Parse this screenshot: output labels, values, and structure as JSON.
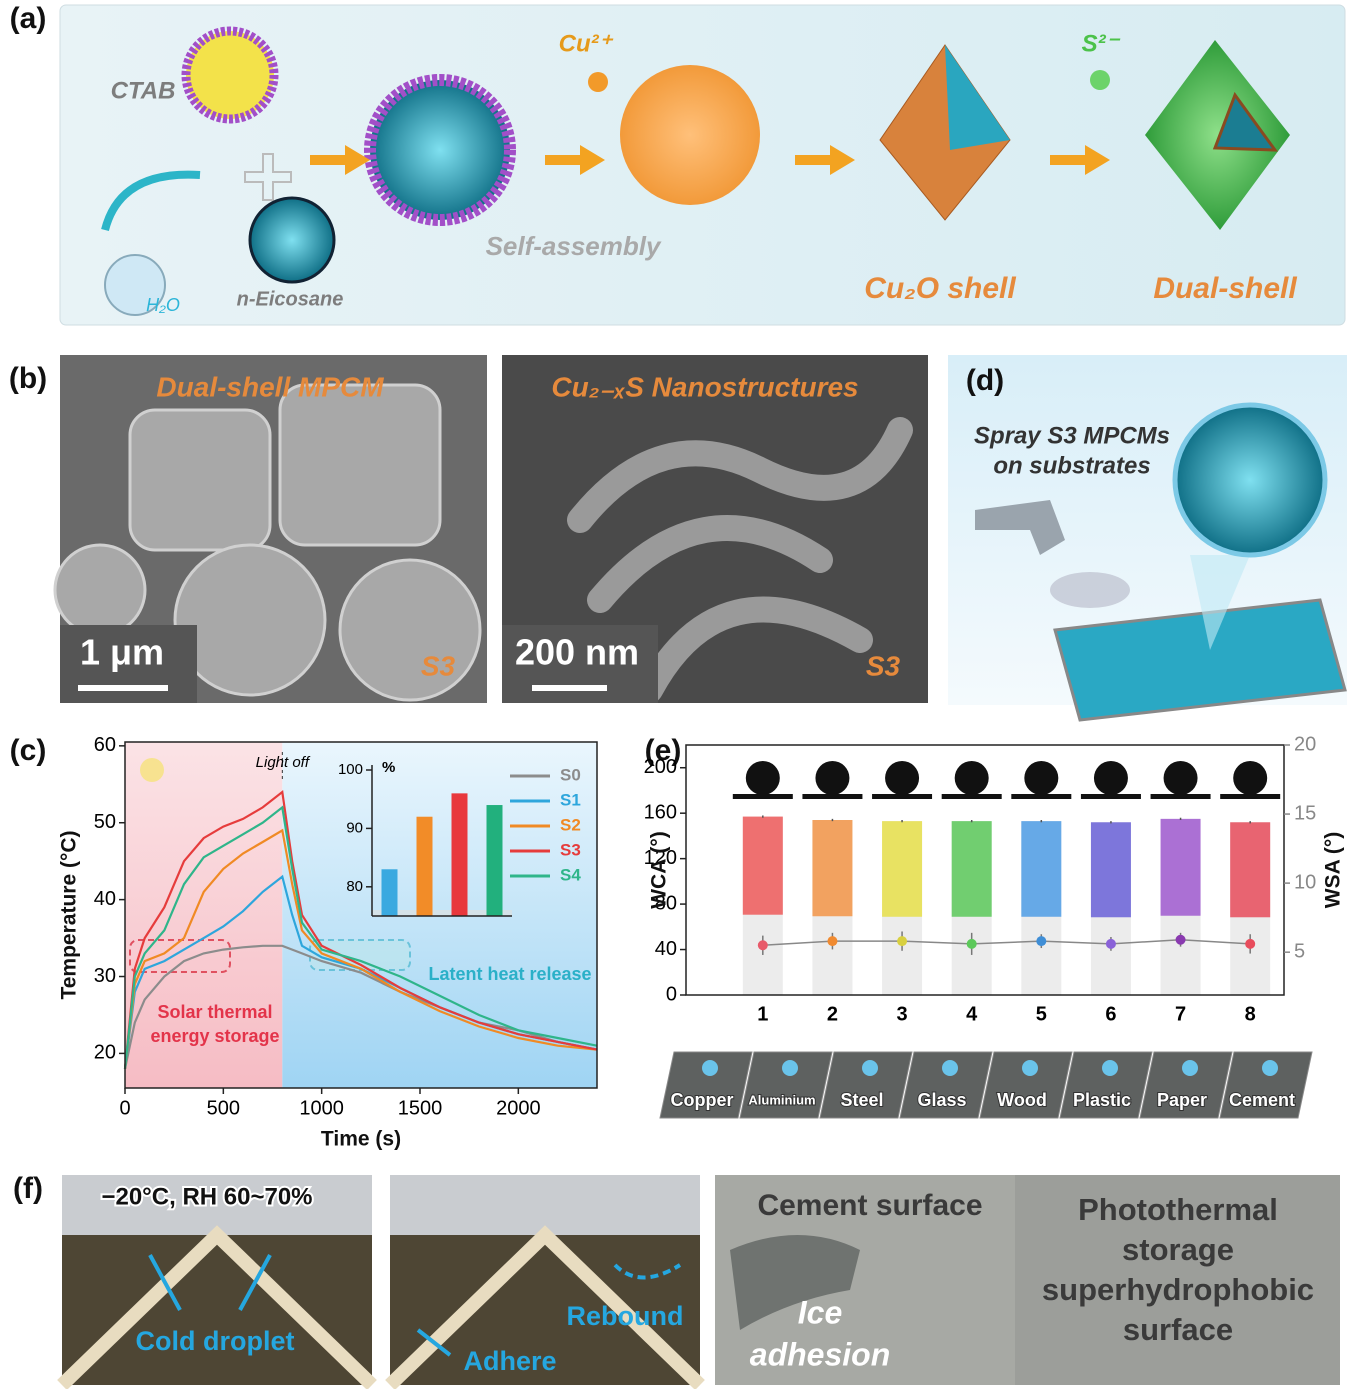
{
  "panel_labels": [
    "(a)",
    "(b)",
    "(c)",
    "(d)",
    "(e)",
    "(f)"
  ],
  "scheme": {
    "ctab": "CTAB",
    "water": "H₂O",
    "eicosane": "n-Eicosane",
    "copper_ion": "Cu²⁺",
    "self_assembly": "Self-assembly",
    "cu2o_shell": "Cu₂O shell",
    "sulfide_ion": "S²⁻",
    "dual_shell": "Dual-shell"
  },
  "sem": [
    {
      "title": "Dual-shell MPCM",
      "scale_bar": "1 μm",
      "sample": "S3"
    },
    {
      "title": "Cu₂₋ₓS Nanostructures",
      "scale_bar": "200 nm",
      "sample": "S3"
    }
  ],
  "spray": {
    "caption": [
      "Spray S3 MPCMs",
      "on substrates"
    ]
  },
  "substrates": [
    "Copper",
    "Aluminium",
    "Steel",
    "Glass",
    "Wood",
    "Plastic",
    "Paper",
    "Cement"
  ],
  "photos": {
    "condition": "−20°C, RH 60~70%",
    "cold_droplet": "Cold droplet",
    "adhere": "Adhere",
    "rebound": "Rebound",
    "cement_surface": "Cement surface",
    "ice_adhesion": [
      "Ice",
      "adhesion"
    ],
    "coating": [
      "Photothermal",
      "storage",
      "superhydrophobic",
      "surface"
    ]
  },
  "chart_data": [
    {
      "type": "line",
      "x": [
        0,
        50,
        100,
        200,
        300,
        400,
        500,
        600,
        700,
        800,
        850,
        900,
        1000,
        1200,
        1400,
        1600,
        1800,
        2000,
        2200,
        2400
      ],
      "xlim": [
        0,
        2400
      ],
      "xticks": [
        0,
        500,
        1000,
        1500,
        2000
      ],
      "ylim": [
        15.5,
        60.5
      ],
      "yticks": [
        20,
        30,
        40,
        50,
        60
      ],
      "xlabel": "Time (s)",
      "ylabel": "Temperature (°C)",
      "legend": "upper right",
      "annotations": {
        "light_off": {
          "text": "Light off",
          "x": 800
        },
        "storage": [
          "Solar thermal",
          "energy storage"
        ],
        "release": "Latent heat release"
      },
      "series": [
        {
          "name": "S0",
          "color": "#8c8c8c",
          "values": [
            18,
            24,
            27,
            30,
            32,
            33,
            33.5,
            33.8,
            34,
            34,
            33.5,
            33,
            32,
            30.5,
            28,
            26,
            24,
            23,
            21.5,
            20.5
          ]
        },
        {
          "name": "S1",
          "color": "#2ea6dc",
          "values": [
            18,
            28,
            31,
            32,
            33.5,
            35,
            36.5,
            38.5,
            41,
            43,
            38,
            34,
            32.5,
            31,
            28.5,
            26,
            24,
            22.5,
            21.5,
            20.5
          ]
        },
        {
          "name": "S2",
          "color": "#f08a24",
          "values": [
            18,
            29,
            32,
            33,
            35,
            41,
            44,
            46,
            47.5,
            49,
            42,
            36,
            33,
            31,
            28,
            25.5,
            23.5,
            22,
            21,
            20.5
          ]
        },
        {
          "name": "S3",
          "color": "#e63c3c",
          "values": [
            18,
            31,
            35,
            39,
            45,
            48,
            49.5,
            50.5,
            52,
            54,
            45,
            38,
            34,
            31.5,
            28.5,
            26,
            24,
            22.5,
            21.5,
            20.5
          ]
        },
        {
          "name": "S4",
          "color": "#2fb58a",
          "values": [
            18,
            30,
            33,
            36,
            42,
            45.5,
            47,
            48.5,
            50,
            52,
            44,
            37,
            33.5,
            32,
            30,
            27.5,
            25,
            23,
            22,
            21
          ]
        }
      ]
    },
    {
      "type": "bar",
      "categories": [
        null,
        null,
        null,
        null
      ],
      "values": [
        83,
        92,
        96,
        94
      ],
      "colors": [
        "#3aa9e0",
        "#f28c28",
        "#e8383d",
        "#22b07d"
      ],
      "ylim": [
        75,
        100
      ],
      "yticks": [
        80,
        90,
        100
      ],
      "ylabel": "%"
    },
    {
      "type": "bar",
      "categories": [
        "1",
        "2",
        "3",
        "4",
        "5",
        "6",
        "7",
        "8"
      ],
      "ylim": [
        0,
        220
      ],
      "yticks": [
        0,
        40,
        80,
        120,
        160,
        200
      ],
      "y2lim": [
        1.9,
        20
      ],
      "y2ticks": [
        5,
        10,
        15,
        20
      ],
      "ylabel": "WCA (°)",
      "y2label": "WSA (°)",
      "series": [
        {
          "values": [
            157,
            154,
            153,
            153,
            153,
            152,
            155,
            152
          ],
          "errors": [
            1,
            1,
            1,
            1,
            1,
            1,
            1,
            1
          ],
          "colors": [
            "#ee5a5a",
            "#f39548",
            "#e8e04a",
            "#5cc95a",
            "#4f9ee6",
            "#6a62d8",
            "#a05ad0",
            "#e84c5c"
          ]
        },
        {
          "axis": "y2",
          "values": [
            5.5,
            5.8,
            5.8,
            5.6,
            5.8,
            5.6,
            5.9,
            5.6
          ],
          "errors": [
            0.7,
            0.6,
            0.7,
            0.8,
            0.5,
            0.5,
            0.5,
            0.7
          ],
          "colors": [
            "#e85a6a",
            "#f08a30",
            "#d8d040",
            "#5cc95a",
            "#3f8ed6",
            "#8a62d8",
            "#8a3ab0",
            "#e84c5c"
          ],
          "color": "#888888"
        }
      ]
    }
  ]
}
